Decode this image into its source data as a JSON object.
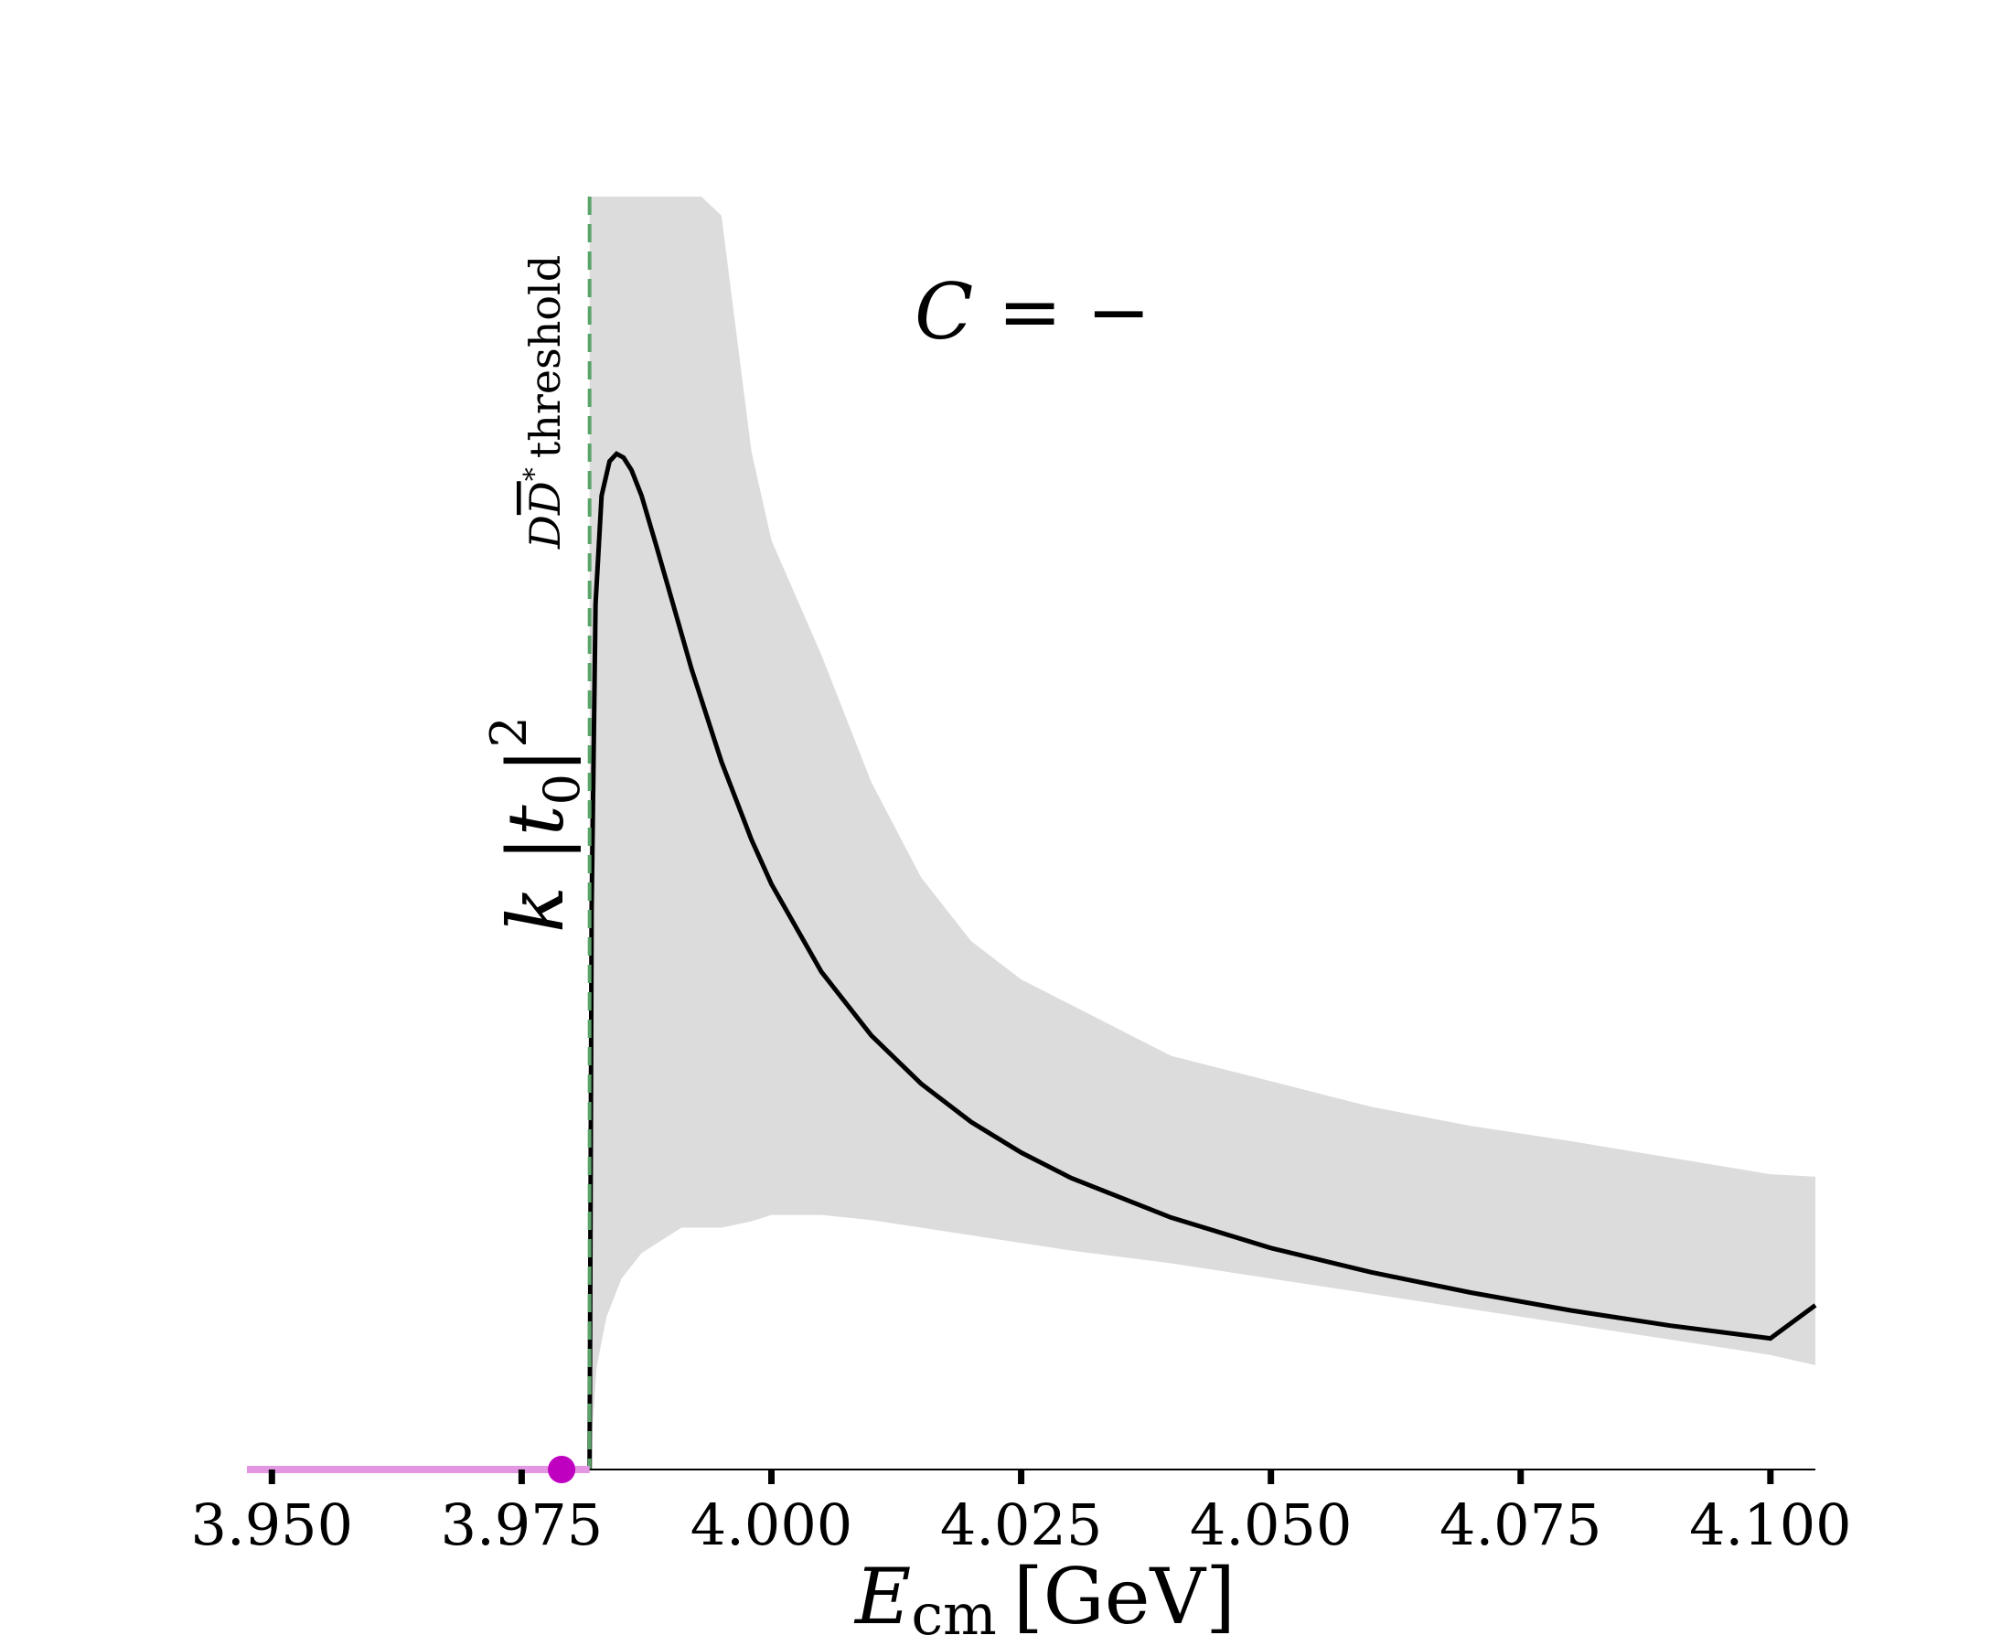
{
  "chart_data": {
    "type": "line",
    "title": "",
    "annotation": "C = −",
    "xlabel": {
      "main": "E",
      "sub": "cm",
      "unit": "[GeV]"
    },
    "ylabel": {
      "prefix": "k |t",
      "sub": "0",
      "suffix": "|",
      "sup": "2"
    },
    "xlim": [
      3.9475,
      4.1045
    ],
    "ylim": [
      0,
      1.0
    ],
    "y_ticks_shown": false,
    "grid": false,
    "x_ticks": [
      3.95,
      3.975,
      4.0,
      4.025,
      4.05,
      4.075,
      4.1
    ],
    "x_tick_labels": [
      "3.950",
      "3.975",
      "4.000",
      "4.025",
      "4.050",
      "4.075",
      "4.100"
    ],
    "threshold": {
      "x": 3.9818,
      "label": "D̅D̅* threshold",
      "label_parts": {
        "d": "D",
        "dbar": "D",
        "star": "*",
        "text": "threshold"
      },
      "color": "#5aa469"
    },
    "bound_state_pole": {
      "x": 3.979,
      "y": 0,
      "color": "#c000c0"
    },
    "pole_uncertainty": {
      "x_from": 3.9475,
      "x_to": 3.9818,
      "color": "#e397e3"
    },
    "series": [
      {
        "style": "central",
        "color": "#000000",
        "x": [
          3.9818,
          3.982,
          3.9824,
          3.983,
          3.9838,
          3.9845,
          3.9852,
          3.986,
          3.987,
          3.9885,
          3.99,
          3.992,
          3.995,
          3.998,
          4.0,
          4.005,
          4.01,
          4.015,
          4.02,
          4.025,
          4.03,
          4.04,
          4.05,
          4.06,
          4.07,
          4.08,
          4.09,
          4.1,
          4.1045
        ],
        "y": [
          0.0,
          0.44,
          0.68,
          0.765,
          0.792,
          0.798,
          0.795,
          0.785,
          0.765,
          0.725,
          0.684,
          0.629,
          0.556,
          0.495,
          0.46,
          0.391,
          0.341,
          0.303,
          0.273,
          0.249,
          0.229,
          0.198,
          0.174,
          0.155,
          0.139,
          0.125,
          0.113,
          0.103,
          0.129
        ]
      },
      {
        "style": "error_band",
        "color": "#dcdcdc",
        "x": [
          3.9818,
          3.9825,
          3.9835,
          3.985,
          3.987,
          3.989,
          3.991,
          3.993,
          3.995,
          3.998,
          4.0,
          4.005,
          4.01,
          4.015,
          4.02,
          4.025,
          4.03,
          4.04,
          4.05,
          4.06,
          4.07,
          4.08,
          4.09,
          4.1,
          4.1045
        ],
        "upper": [
          1.0,
          1.0,
          1.0,
          1.0,
          1.0,
          1.0,
          1.0,
          1.0,
          0.985,
          0.8,
          0.73,
          0.64,
          0.54,
          0.465,
          0.415,
          0.385,
          0.365,
          0.325,
          0.305,
          0.285,
          0.27,
          0.258,
          0.245,
          0.232,
          0.23
        ],
        "lower": [
          0.0,
          0.08,
          0.12,
          0.15,
          0.17,
          0.18,
          0.19,
          0.19,
          0.19,
          0.195,
          0.2,
          0.2,
          0.196,
          0.19,
          0.184,
          0.178,
          0.172,
          0.162,
          0.15,
          0.138,
          0.126,
          0.114,
          0.102,
          0.09,
          0.082
        ]
      }
    ]
  }
}
